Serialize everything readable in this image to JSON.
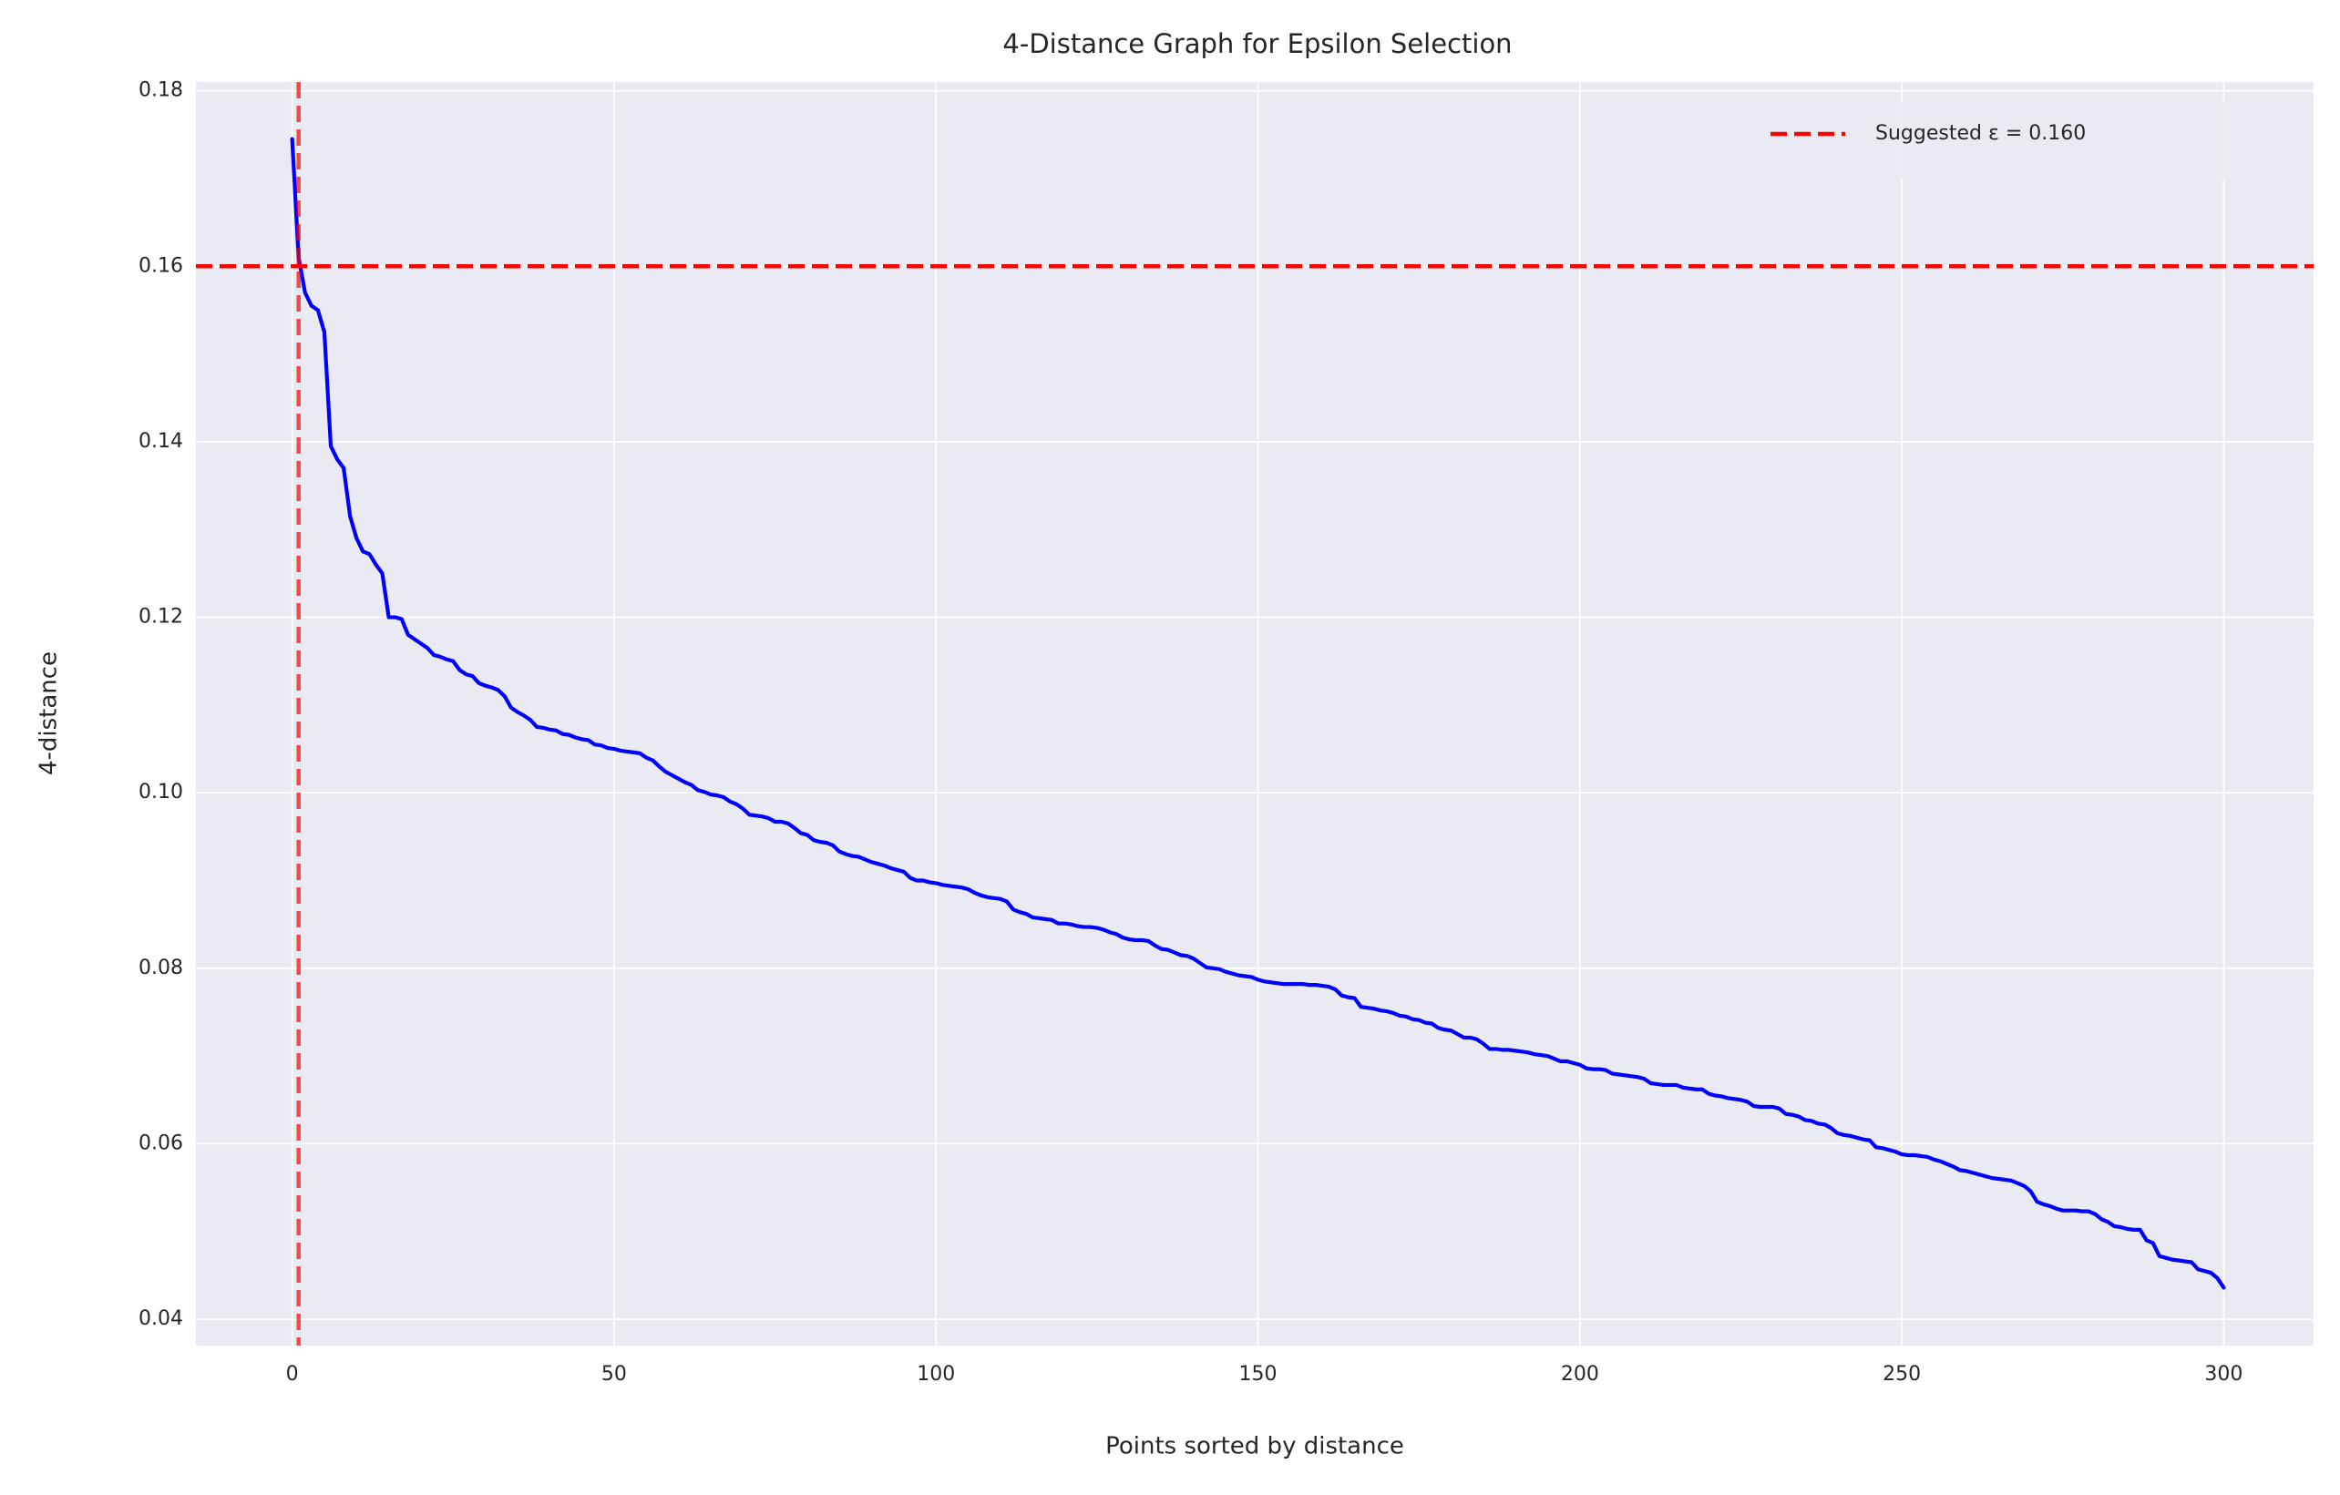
{
  "chart_data": {
    "type": "line",
    "title": "4-Distance Graph for Epsilon Selection",
    "xlabel": "Points sorted by distance",
    "ylabel": "4-distance",
    "color": "blue",
    "values": [
      0.1745,
      0.161,
      0.157,
      0.1555,
      0.155,
      0.1525,
      0.1395,
      0.138,
      0.137,
      0.1315,
      0.129,
      0.1275,
      0.1272,
      0.126,
      0.125,
      0.12,
      0.12,
      0.1198,
      0.118,
      0.1175,
      0.117,
      0.1165,
      0.1157,
      0.1155,
      0.1152,
      0.115,
      0.114,
      0.1135,
      0.1133,
      0.1125,
      0.1122,
      0.112,
      0.1117,
      0.111,
      0.1097,
      0.1092,
      0.1088,
      0.1083,
      0.1075,
      0.1074,
      0.1072,
      0.1071,
      0.1067,
      0.1066,
      0.1063,
      0.1061,
      0.106,
      0.1055,
      0.1054,
      0.1051,
      0.105,
      0.1048,
      0.1047,
      0.1046,
      0.1045,
      0.104,
      0.1037,
      0.103,
      0.1024,
      0.102,
      0.1016,
      0.1012,
      0.1009,
      0.1003,
      0.1001,
      0.0998,
      0.0997,
      0.0995,
      0.099,
      0.0987,
      0.0982,
      0.0975,
      0.0974,
      0.0973,
      0.0971,
      0.0967,
      0.0967,
      0.0965,
      0.096,
      0.0954,
      0.0952,
      0.0946,
      0.0944,
      0.0943,
      0.094,
      0.0933,
      0.093,
      0.0928,
      0.0927,
      0.0924,
      0.0921,
      0.0919,
      0.0917,
      0.0914,
      0.0912,
      0.091,
      0.0903,
      0.09,
      0.09,
      0.0898,
      0.0897,
      0.0895,
      0.0894,
      0.0893,
      0.0892,
      0.089,
      0.0886,
      0.0883,
      0.0881,
      0.088,
      0.0879,
      0.0876,
      0.0867,
      0.0864,
      0.0862,
      0.0858,
      0.0857,
      0.0856,
      0.0855,
      0.0851,
      0.0851,
      0.085,
      0.0848,
      0.0847,
      0.0847,
      0.0846,
      0.0844,
      0.0841,
      0.0839,
      0.0835,
      0.0833,
      0.0832,
      0.0832,
      0.0831,
      0.0826,
      0.0822,
      0.0821,
      0.0818,
      0.0815,
      0.0814,
      0.0811,
      0.0806,
      0.0801,
      0.08,
      0.0799,
      0.0796,
      0.0794,
      0.0792,
      0.0791,
      0.079,
      0.0787,
      0.0785,
      0.0784,
      0.0783,
      0.0782,
      0.0782,
      0.0782,
      0.0782,
      0.0781,
      0.0781,
      0.078,
      0.0779,
      0.0776,
      0.0769,
      0.0767,
      0.0766,
      0.0756,
      0.0755,
      0.0754,
      0.0752,
      0.0751,
      0.0749,
      0.0746,
      0.0745,
      0.0742,
      0.0741,
      0.0738,
      0.0737,
      0.0732,
      0.073,
      0.0729,
      0.0725,
      0.0721,
      0.0721,
      0.0719,
      0.0714,
      0.0708,
      0.0708,
      0.0707,
      0.0707,
      0.0706,
      0.0705,
      0.0704,
      0.0702,
      0.0701,
      0.07,
      0.0697,
      0.0694,
      0.0694,
      0.0692,
      0.069,
      0.0686,
      0.0685,
      0.0685,
      0.0684,
      0.068,
      0.0679,
      0.0678,
      0.0677,
      0.0676,
      0.0674,
      0.0669,
      0.0668,
      0.0667,
      0.0667,
      0.0667,
      0.0664,
      0.0663,
      0.0662,
      0.0662,
      0.0657,
      0.0655,
      0.0654,
      0.0652,
      0.0651,
      0.065,
      0.0648,
      0.0643,
      0.0642,
      0.0642,
      0.0642,
      0.064,
      0.0634,
      0.0633,
      0.0631,
      0.0627,
      0.0626,
      0.0623,
      0.0622,
      0.0618,
      0.0612,
      0.061,
      0.0609,
      0.0607,
      0.0605,
      0.0604,
      0.0596,
      0.0595,
      0.0593,
      0.0591,
      0.0588,
      0.0587,
      0.0587,
      0.0586,
      0.0585,
      0.0582,
      0.058,
      0.0577,
      0.0574,
      0.057,
      0.0569,
      0.0567,
      0.0565,
      0.0563,
      0.0561,
      0.056,
      0.0559,
      0.0558,
      0.0555,
      0.0552,
      0.0546,
      0.0534,
      0.0531,
      0.0529,
      0.0526,
      0.0524,
      0.0524,
      0.0524,
      0.0523,
      0.0523,
      0.052,
      0.0514,
      0.0511,
      0.0506,
      0.0505,
      0.0503,
      0.0502,
      0.0502,
      0.049,
      0.0487,
      0.0472,
      0.047,
      0.0468,
      0.0467,
      0.0466,
      0.0465,
      0.0457,
      0.0455,
      0.0453,
      0.0447,
      0.0436
    ],
    "xlim": [
      -14.95,
      313.95
    ],
    "ylim": [
      0.037,
      0.181
    ],
    "xticks": [
      0,
      50,
      100,
      150,
      200,
      250,
      300
    ],
    "yticks": [
      0.04,
      0.06,
      0.08,
      {
        "value": 0.1,
        "label": "0.10"
      },
      0.12,
      0.14,
      0.16,
      0.18
    ],
    "grid": true,
    "legend": "upper right",
    "reference_lines": [
      {
        "orientation": "horizontal",
        "value": 0.16,
        "color": "red",
        "opacity": 1,
        "label": "Suggested ε = 0.160"
      },
      {
        "orientation": "vertical",
        "value": 1,
        "color": "red",
        "opacity": 0.7
      }
    ]
  }
}
